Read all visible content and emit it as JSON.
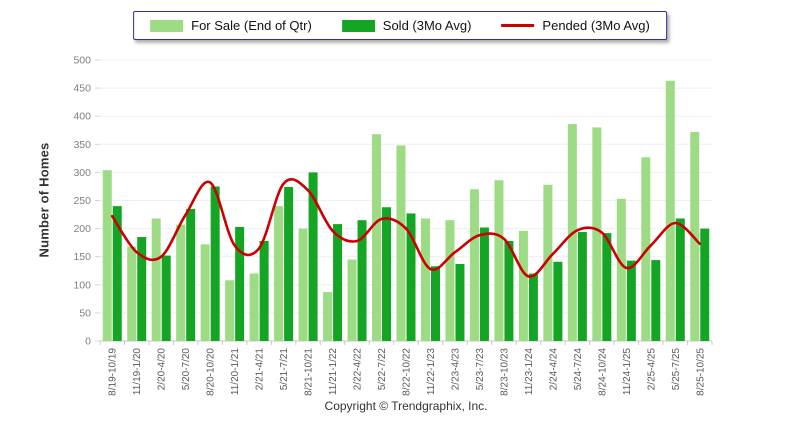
{
  "footer": {
    "copyright": "Copyright © Trendgraphix, Inc."
  },
  "chart_data": {
    "type": "bar",
    "title": "",
    "ylabel": "Number of Homes",
    "xlabel": "",
    "ylim": [
      0,
      500
    ],
    "y_ticks": [
      0,
      50,
      100,
      150,
      200,
      250,
      300,
      350,
      400,
      450,
      500
    ],
    "grid": true,
    "legend_position": "top-center",
    "axis_colors": {
      "grid": "#efefef",
      "axis": "#c8c8c8",
      "tick_text": "#7f7f7f",
      "xlabel_text": "#595959"
    },
    "categories": [
      "8/19-10/19",
      "11/19-1/20",
      "2/20-4/20",
      "5/20-7/20",
      "8/20-10/20",
      "11/20-1/21",
      "2/21-4/21",
      "5/21-7/21",
      "8/21-10/21",
      "11/21-1/22",
      "2/22-4/22",
      "5/22-7/22",
      "8/22-10/22",
      "11/22-1/23",
      "2/23-4/23",
      "5/23-7/23",
      "8/23-10/23",
      "11/23-1/24",
      "2/24-4/24",
      "5/24-7/24",
      "8/24-10/24",
      "11/24-1/25",
      "2/25-4/25",
      "5/25-7/25",
      "8/25-10/25"
    ],
    "series": [
      {
        "name": "For Sale (End of Qtr)",
        "type": "bar",
        "color": "#9ddb85",
        "values": [
          304,
          168,
          218,
          207,
          172,
          108,
          120,
          240,
          200,
          87,
          145,
          368,
          348,
          218,
          215,
          270,
          286,
          196,
          278,
          386,
          380,
          253,
          327,
          463,
          372
        ]
      },
      {
        "name": "Sold (3Mo Avg)",
        "type": "bar",
        "color": "#15a525",
        "values": [
          240,
          185,
          152,
          235,
          275,
          203,
          178,
          274,
          300,
          208,
          215,
          238,
          227,
          133,
          137,
          202,
          178,
          120,
          141,
          194,
          192,
          143,
          144,
          218,
          200
        ]
      },
      {
        "name": "Pended (3Mo Avg)",
        "type": "line",
        "color": "#cc0000",
        "values": [
          222,
          158,
          150,
          225,
          282,
          170,
          165,
          280,
          268,
          196,
          178,
          217,
          200,
          128,
          158,
          188,
          182,
          115,
          155,
          197,
          193,
          130,
          170,
          210,
          173
        ]
      }
    ]
  }
}
